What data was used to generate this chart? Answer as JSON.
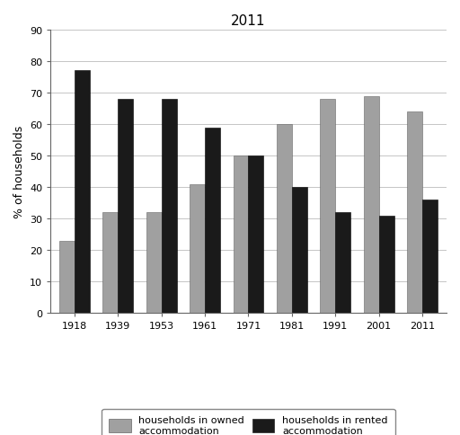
{
  "title": "2011",
  "xlabel": "",
  "ylabel": "% of households",
  "years": [
    "1918",
    "1939",
    "1953",
    "1961",
    "1971",
    "1981",
    "1991",
    "2001",
    "2011"
  ],
  "owned": [
    23,
    32,
    32,
    41,
    50,
    60,
    68,
    69,
    64
  ],
  "rented": [
    77,
    68,
    68,
    59,
    50,
    40,
    32,
    31,
    36
  ],
  "owned_color": "#a0a0a0",
  "rented_color": "#1a1a1a",
  "ylim": [
    0,
    90
  ],
  "yticks": [
    0,
    10,
    20,
    30,
    40,
    50,
    60,
    70,
    80,
    90
  ],
  "bar_width": 0.35,
  "legend_owned": "households in owned\naccommodation",
  "legend_rented": "households in rented\naccommodation",
  "background_color": "#ffffff",
  "grid_color": "#bbbbbb",
  "title_fontsize": 11,
  "axis_label_fontsize": 9,
  "tick_fontsize": 8,
  "legend_fontsize": 8
}
